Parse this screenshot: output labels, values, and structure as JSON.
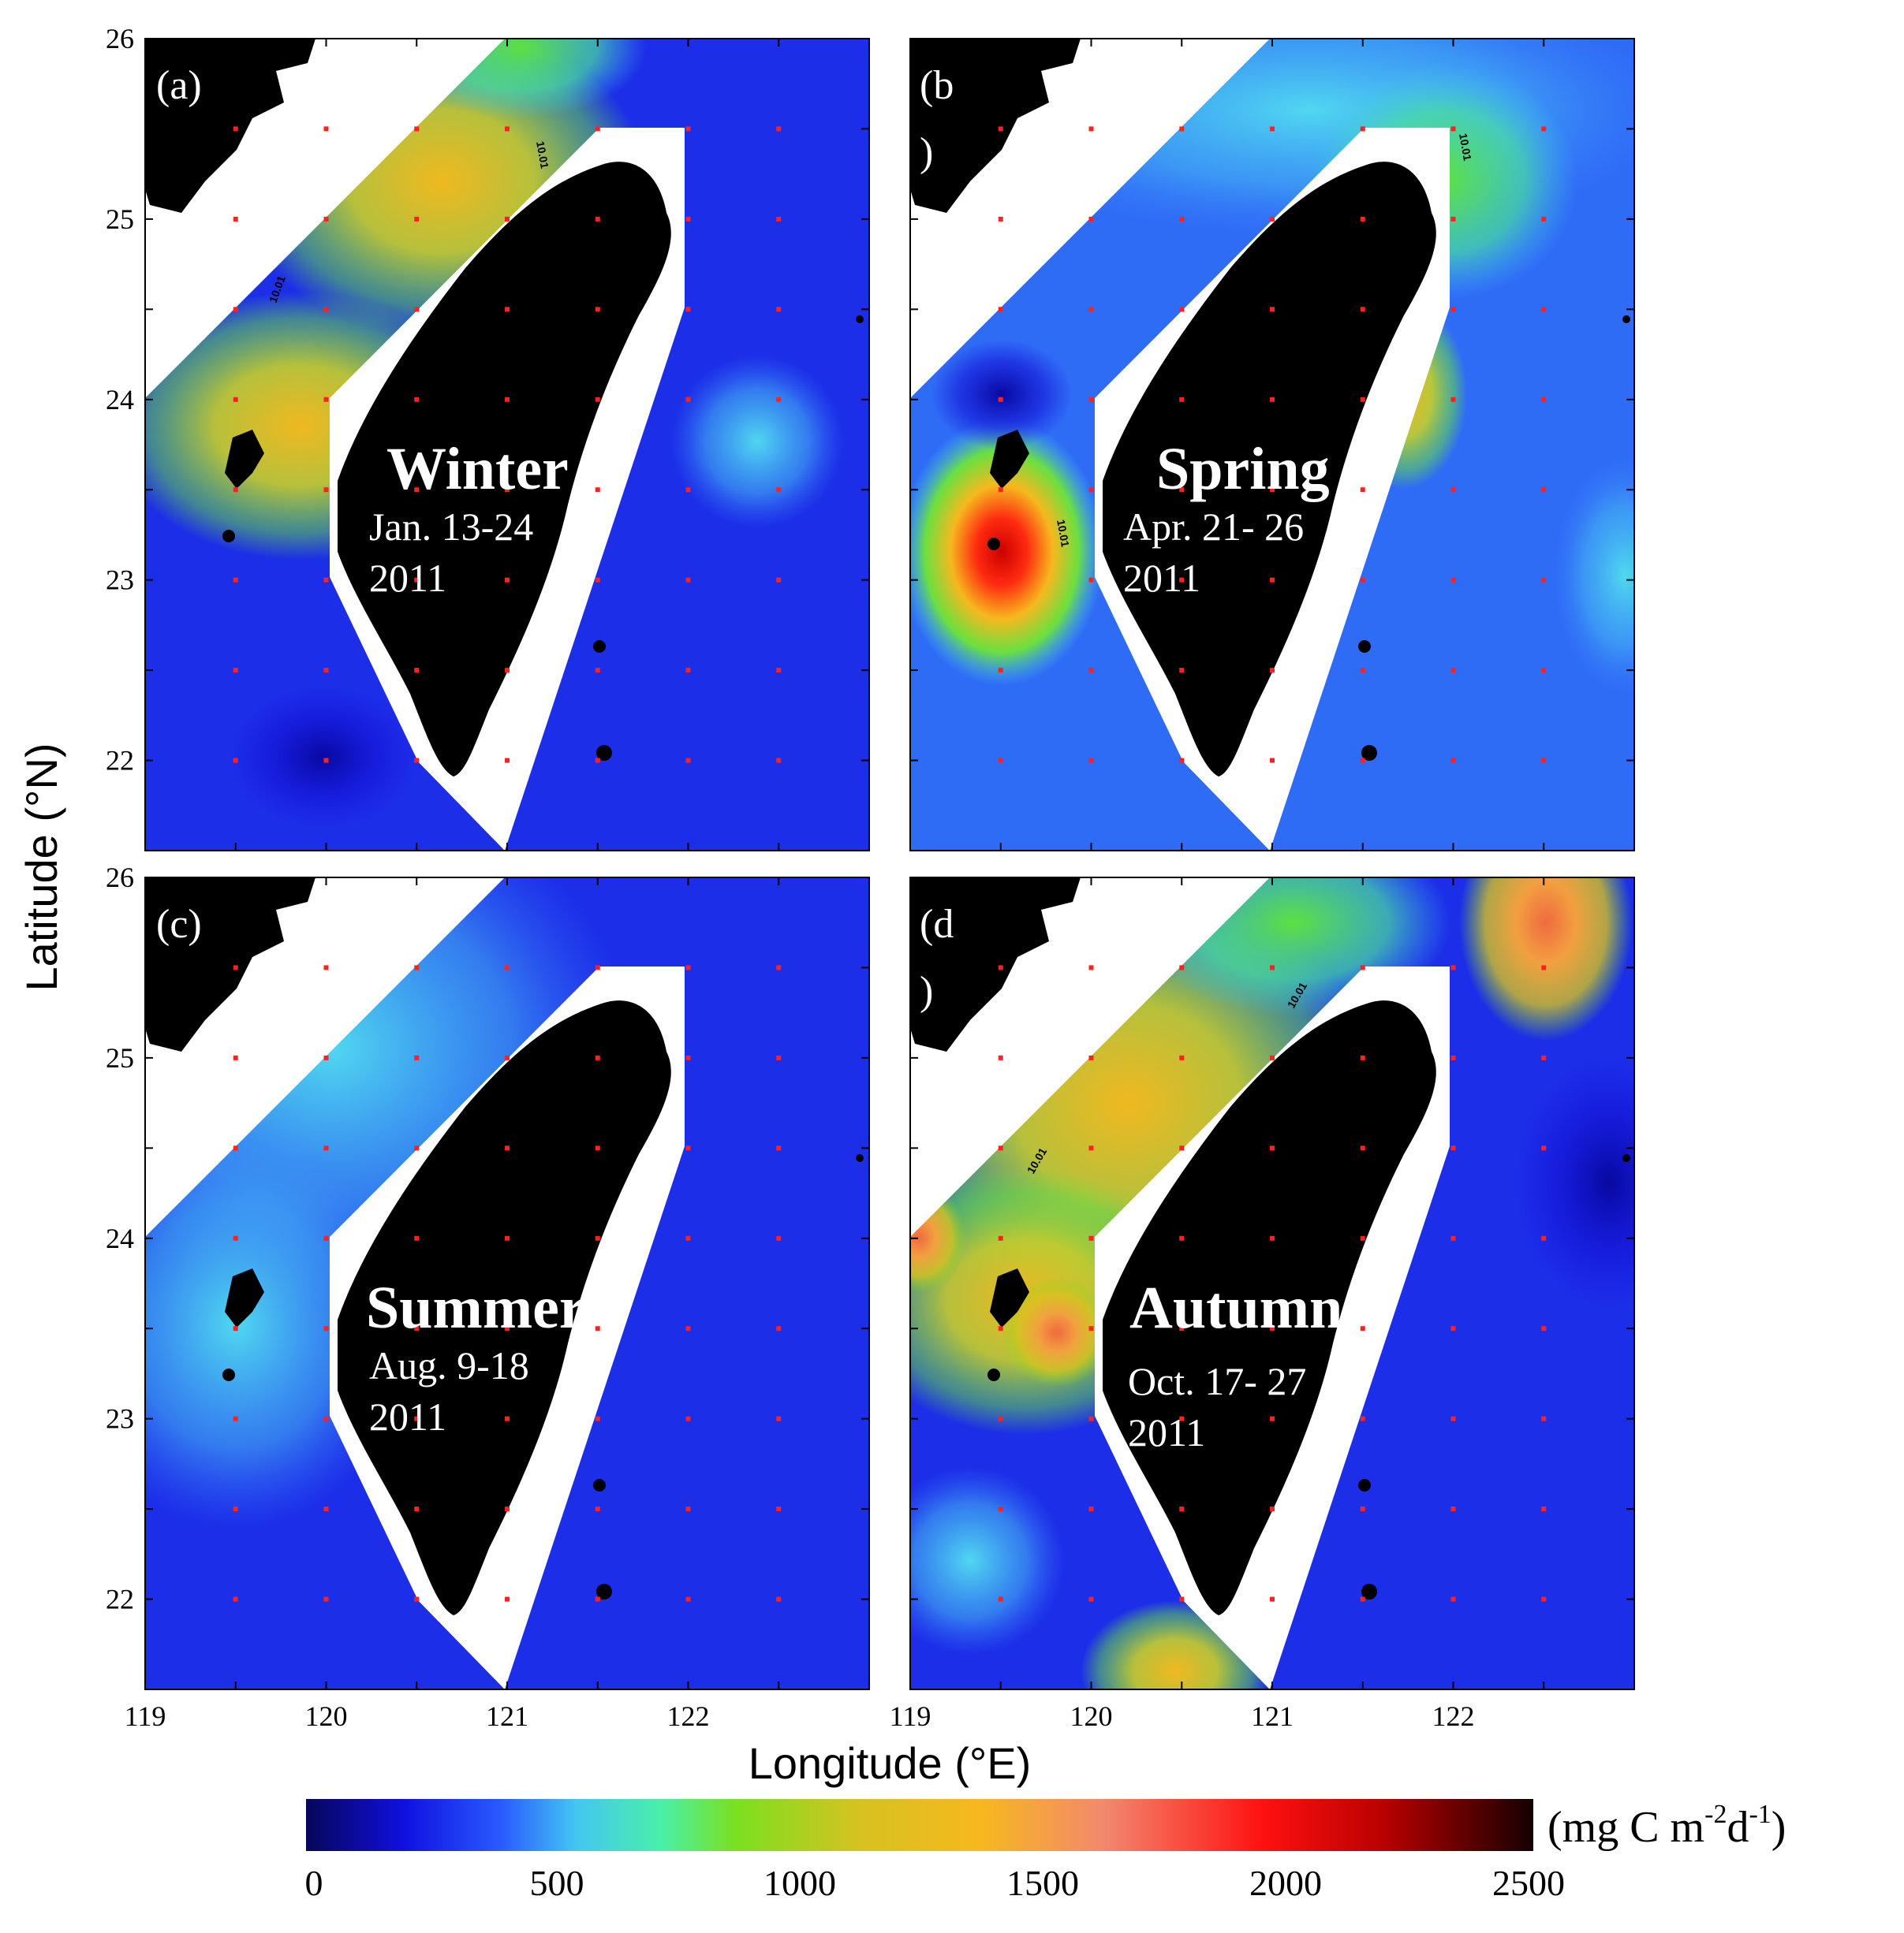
{
  "figure": {
    "y_axis_title": "Latitude (°N)",
    "x_axis_title": "Longitude (°E)",
    "y_ticks": [
      "26",
      "25",
      "24",
      "23",
      "22"
    ],
    "x_ticks": [
      "119",
      "120",
      "121",
      "122"
    ],
    "lon_range": [
      119,
      123
    ],
    "lat_range": [
      21.5,
      26
    ],
    "contour_label": "10.01"
  },
  "panels": [
    {
      "id": "a",
      "label": "(a)",
      "season": "Winter",
      "dates": "Jan. 13-24",
      "year": "2011"
    },
    {
      "id": "b",
      "label": "(b",
      "label_line2": ")",
      "season": "Spring",
      "dates": "Apr. 21- 26",
      "year": "2011"
    },
    {
      "id": "c",
      "label": "(c)",
      "season": "Summer",
      "dates": "Aug. 9-18",
      "year": "2011"
    },
    {
      "id": "d",
      "label": "(d",
      "label_line2": ")",
      "season": "Autumn",
      "dates": "Oct. 17- 27",
      "year": "2011"
    }
  ],
  "colorbar": {
    "unit": "(mg C m-2d-1)",
    "unit_base": "(mg C m",
    "unit_sup1": "-2",
    "unit_mid": "d",
    "unit_sup2": "-1",
    "unit_end": ")",
    "ticks": [
      "0",
      "500",
      "1000",
      "1500",
      "2000",
      "2500"
    ],
    "range": [
      0,
      2500
    ],
    "colors": [
      "#06065a",
      "#1010e0",
      "#2a5cff",
      "#43c6f2",
      "#49f0a8",
      "#7ae020",
      "#d6c220",
      "#f6b81e",
      "#f2886e",
      "#ff1010",
      "#b80000",
      "#150000"
    ]
  },
  "colors": {
    "land": "#000000",
    "station": "#ff2020",
    "text_overlay": "#ffffff"
  }
}
